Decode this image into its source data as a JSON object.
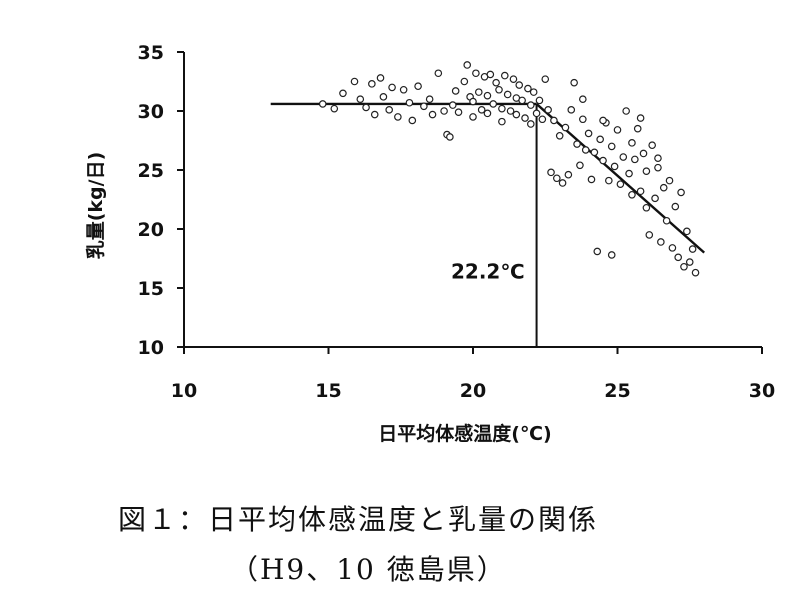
{
  "chart_data": {
    "type": "scatter",
    "title": "",
    "xlabel": "日平均体感温度(℃)",
    "ylabel": "乳量(kg/日)",
    "xlim": [
      10,
      30
    ],
    "ylim": [
      10,
      35
    ],
    "xticks": [
      "10",
      "15",
      "20",
      "25",
      "30"
    ],
    "yticks": [
      "10",
      "15",
      "20",
      "25",
      "30",
      "35"
    ],
    "grid": false,
    "legend": "none",
    "breakpoint_label": "22.2℃",
    "breakpoint_x": 22.2,
    "regression": {
      "segments": [
        {
          "x": [
            13,
            22.2
          ],
          "y": [
            30.6,
            30.6
          ]
        },
        {
          "x": [
            22.2,
            28
          ],
          "y": [
            30.6,
            18
          ]
        }
      ]
    },
    "series": [
      {
        "points": [
          [
            14.8,
            30.6
          ],
          [
            15.2,
            30.2
          ],
          [
            15.5,
            31.5
          ],
          [
            15.9,
            32.5
          ],
          [
            16.1,
            31.0
          ],
          [
            16.3,
            30.3
          ],
          [
            16.5,
            32.3
          ],
          [
            16.6,
            29.7
          ],
          [
            16.8,
            32.8
          ],
          [
            16.9,
            31.2
          ],
          [
            17.1,
            30.1
          ],
          [
            17.2,
            32.0
          ],
          [
            17.4,
            29.5
          ],
          [
            17.6,
            31.8
          ],
          [
            17.8,
            30.7
          ],
          [
            17.9,
            29.2
          ],
          [
            18.1,
            32.1
          ],
          [
            18.3,
            30.4
          ],
          [
            18.5,
            31.0
          ],
          [
            18.6,
            29.7
          ],
          [
            18.8,
            33.2
          ],
          [
            19.0,
            30.0
          ],
          [
            19.1,
            28.0
          ],
          [
            19.2,
            27.8
          ],
          [
            19.3,
            30.5
          ],
          [
            19.4,
            31.7
          ],
          [
            19.5,
            29.9
          ],
          [
            19.7,
            32.5
          ],
          [
            19.8,
            33.9
          ],
          [
            19.9,
            31.2
          ],
          [
            20.0,
            30.8
          ],
          [
            20.0,
            29.5
          ],
          [
            20.1,
            33.2
          ],
          [
            20.2,
            31.6
          ],
          [
            20.3,
            30.1
          ],
          [
            20.4,
            32.9
          ],
          [
            20.5,
            31.3
          ],
          [
            20.5,
            29.8
          ],
          [
            20.6,
            33.1
          ],
          [
            20.7,
            30.6
          ],
          [
            20.8,
            32.4
          ],
          [
            20.9,
            31.8
          ],
          [
            21.0,
            30.2
          ],
          [
            21.0,
            29.1
          ],
          [
            21.1,
            33.0
          ],
          [
            21.2,
            31.4
          ],
          [
            21.3,
            30.0
          ],
          [
            21.4,
            32.7
          ],
          [
            21.5,
            31.1
          ],
          [
            21.5,
            29.7
          ],
          [
            21.6,
            32.2
          ],
          [
            21.7,
            30.9
          ],
          [
            21.8,
            29.4
          ],
          [
            21.9,
            31.9
          ],
          [
            22.0,
            30.5
          ],
          [
            22.0,
            28.9
          ],
          [
            22.1,
            31.6
          ],
          [
            22.2,
            29.8
          ],
          [
            22.3,
            30.9
          ],
          [
            22.4,
            29.3
          ],
          [
            22.5,
            32.7
          ],
          [
            22.6,
            30.1
          ],
          [
            22.7,
            24.8
          ],
          [
            22.8,
            29.2
          ],
          [
            22.9,
            24.3
          ],
          [
            23.0,
            27.9
          ],
          [
            23.1,
            23.9
          ],
          [
            23.2,
            28.6
          ],
          [
            23.3,
            24.6
          ],
          [
            23.4,
            30.1
          ],
          [
            23.5,
            32.4
          ],
          [
            23.6,
            27.2
          ],
          [
            23.7,
            25.4
          ],
          [
            23.8,
            29.3
          ],
          [
            23.9,
            26.7
          ],
          [
            24.0,
            28.1
          ],
          [
            24.1,
            24.2
          ],
          [
            24.2,
            26.5
          ],
          [
            24.3,
            18.1
          ],
          [
            24.4,
            27.6
          ],
          [
            24.5,
            25.8
          ],
          [
            24.6,
            29.0
          ],
          [
            24.7,
            24.1
          ],
          [
            24.8,
            27.0
          ],
          [
            24.8,
            17.8
          ],
          [
            24.9,
            25.3
          ],
          [
            25.0,
            28.4
          ],
          [
            25.1,
            23.8
          ],
          [
            25.2,
            26.1
          ],
          [
            25.3,
            30.0
          ],
          [
            25.4,
            24.7
          ],
          [
            25.5,
            27.3
          ],
          [
            25.5,
            22.9
          ],
          [
            25.6,
            25.9
          ],
          [
            25.7,
            28.5
          ],
          [
            25.8,
            23.2
          ],
          [
            25.9,
            26.4
          ],
          [
            26.0,
            21.8
          ],
          [
            26.0,
            24.9
          ],
          [
            26.1,
            19.5
          ],
          [
            26.2,
            27.1
          ],
          [
            26.3,
            22.6
          ],
          [
            26.4,
            25.2
          ],
          [
            26.5,
            18.9
          ],
          [
            26.6,
            23.5
          ],
          [
            26.7,
            20.7
          ],
          [
            26.8,
            24.1
          ],
          [
            26.9,
            18.4
          ],
          [
            27.0,
            21.9
          ],
          [
            27.1,
            17.6
          ],
          [
            27.2,
            23.1
          ],
          [
            27.3,
            16.8
          ],
          [
            27.4,
            19.8
          ],
          [
            27.5,
            17.2
          ],
          [
            27.6,
            18.3
          ],
          [
            27.7,
            16.3
          ],
          [
            23.8,
            31.0
          ],
          [
            24.5,
            29.2
          ],
          [
            25.8,
            29.4
          ],
          [
            26.4,
            26.0
          ]
        ]
      }
    ]
  },
  "caption": {
    "line1": "図１：日平均体感温度と乳量の関係",
    "line2": "（H9、10 徳島県）"
  }
}
